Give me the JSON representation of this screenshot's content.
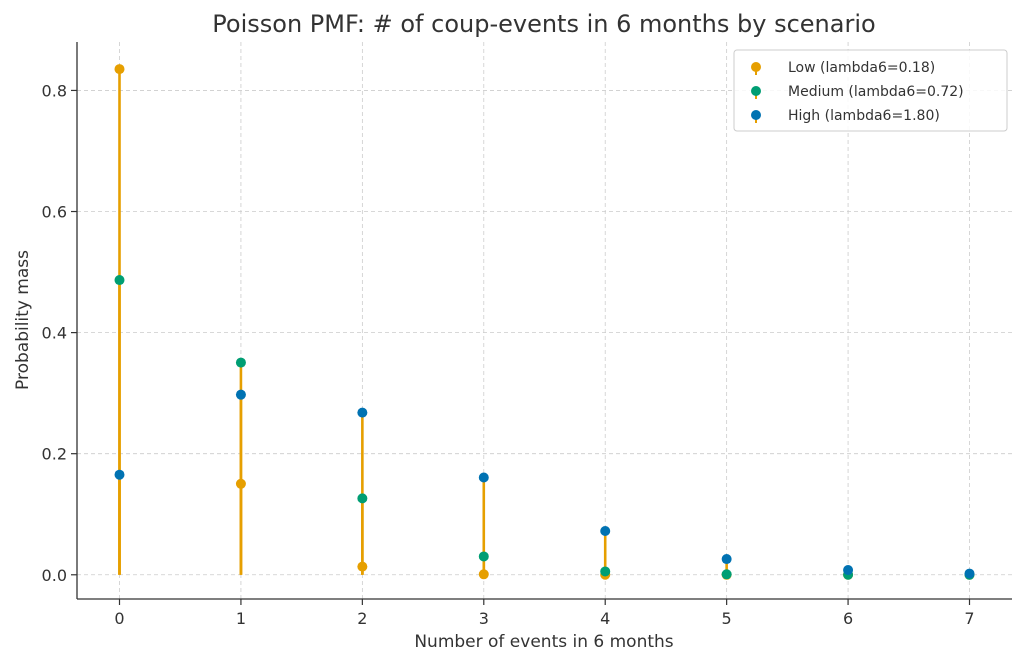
{
  "chart_data": {
    "type": "stem",
    "title": "Poisson PMF: # of coup-events in 6 months by scenario",
    "xlabel": "Number of events in 6 months",
    "ylabel": "Probability mass",
    "xlim": [
      -0.35,
      7.35
    ],
    "ylim": [
      -0.04,
      0.88
    ],
    "xticks": [
      0,
      1,
      2,
      3,
      4,
      5,
      6,
      7
    ],
    "xtick_labels": [
      "0",
      "1",
      "2",
      "3",
      "4",
      "5",
      "6",
      "7"
    ],
    "yticks": [
      0.0,
      0.2,
      0.4,
      0.6,
      0.8
    ],
    "ytick_labels": [
      "0.0",
      "0.2",
      "0.4",
      "0.6",
      "0.8"
    ],
    "grid": true,
    "legend_position": "top-right",
    "stem_color": "#E69F00",
    "x": [
      0,
      1,
      2,
      3,
      4,
      5,
      6,
      7
    ],
    "series": [
      {
        "name": "Low (lambda6=0.18)",
        "color": "#E69F00",
        "values": [
          0.8353,
          0.1503,
          0.0135,
          0.0008,
          4e-05,
          0.0,
          0.0,
          0.0
        ]
      },
      {
        "name": "Medium (lambda6=0.72)",
        "color": "#009E73",
        "values": [
          0.4868,
          0.3505,
          0.1262,
          0.0303,
          0.0055,
          0.0008,
          0.0001,
          0.0
        ]
      },
      {
        "name": "High (lambda6=1.80)",
        "color": "#0072B2",
        "values": [
          0.1653,
          0.2975,
          0.2678,
          0.1607,
          0.0723,
          0.026,
          0.0078,
          0.002
        ]
      }
    ]
  }
}
